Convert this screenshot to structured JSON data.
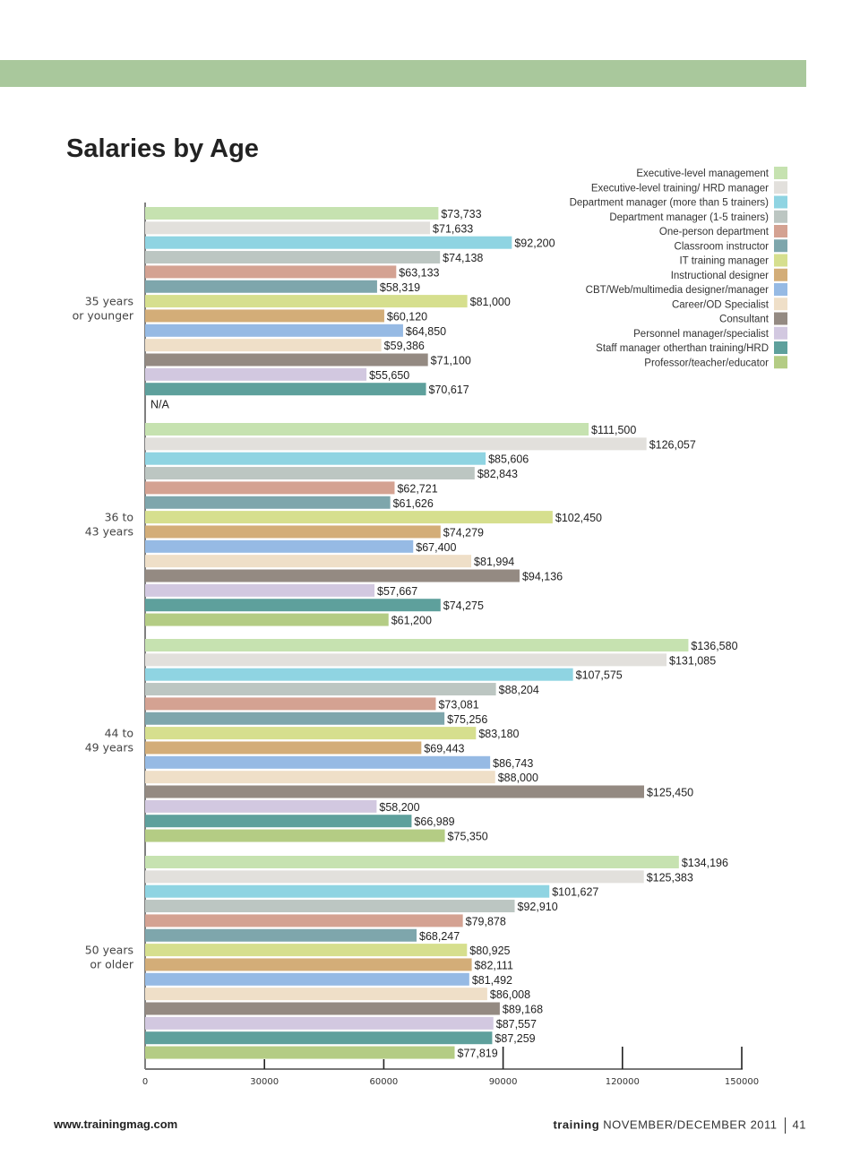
{
  "title": "Salaries by Age",
  "footer": {
    "website": "www.trainingmag.com",
    "magazine": "training",
    "issue": "NOVEMBER/DECEMBER 2011",
    "page": "41"
  },
  "chart_data": {
    "type": "bar",
    "orientation": "horizontal",
    "title": "Salaries by Age",
    "xlim": [
      0,
      150000
    ],
    "xticks": [
      "0",
      "30000",
      "60000",
      "90000",
      "120000",
      "150000"
    ],
    "legend_position": "top-right",
    "categories": [
      "35 years or younger",
      "36 to 43 years",
      "44 to 49 years",
      "50 years or older"
    ],
    "series": [
      {
        "name": "Executive-level management",
        "color": "#c6e2b0",
        "values": [
          73733,
          111500,
          136580,
          134196
        ],
        "labels": [
          "$73,733",
          "$111,500",
          "$136,580",
          "$134,196"
        ]
      },
      {
        "name": "Executive-level training/ HRD manager",
        "color": "#e2e0dc",
        "values": [
          71633,
          126057,
          131085,
          125383
        ],
        "labels": [
          "$71,633",
          "$126,057",
          "$131,085",
          "$125,383"
        ]
      },
      {
        "name": "Department manager (more than 5 trainers)",
        "color": "#8fd4e2",
        "values": [
          92200,
          85606,
          107575,
          101627
        ],
        "labels": [
          "$92,200",
          "$85,606",
          "$107,575",
          "$101,627"
        ]
      },
      {
        "name": "Department manager (1-5 trainers)",
        "color": "#bcc6c2",
        "values": [
          74138,
          82843,
          88204,
          92910
        ],
        "labels": [
          "$74,138",
          "$82,843",
          "$88,204",
          "$92,910"
        ]
      },
      {
        "name": "One-person department",
        "color": "#d4a292",
        "values": [
          63133,
          62721,
          73081,
          79878
        ],
        "labels": [
          "$63,133",
          "$62,721",
          "$73,081",
          "$79,878"
        ]
      },
      {
        "name": "Classroom instructor",
        "color": "#7ea6ac",
        "values": [
          58319,
          61626,
          75256,
          68247
        ],
        "labels": [
          "$58,319",
          "$61,626",
          "$75,256",
          "$68,247"
        ]
      },
      {
        "name": "IT training manager",
        "color": "#d6df8e",
        "values": [
          81000,
          102450,
          83180,
          80925
        ],
        "labels": [
          "$81,000",
          "$102,450",
          "$83,180",
          "$80,925"
        ]
      },
      {
        "name": "Instructional designer",
        "color": "#d3ad78",
        "values": [
          60120,
          74279,
          69443,
          82111
        ],
        "labels": [
          "$60,120",
          "$74,279",
          "$69,443",
          "$82,111"
        ]
      },
      {
        "name": "CBT/Web/multimedia designer/manager",
        "color": "#96bae4",
        "values": [
          64850,
          67400,
          86743,
          81492
        ],
        "labels": [
          "$64,850",
          "$67,400",
          "$86,743",
          "$81,492"
        ]
      },
      {
        "name": "Career/OD Specialist",
        "color": "#efdfc8",
        "values": [
          59386,
          81994,
          88000,
          86008
        ],
        "labels": [
          "$59,386",
          "$81,994",
          "$88,000",
          "$86,008"
        ]
      },
      {
        "name": "Consultant",
        "color": "#948a82",
        "values": [
          71100,
          94136,
          125450,
          89168
        ],
        "labels": [
          "$71,100",
          "$94,136",
          "$125,450",
          "$89,168"
        ]
      },
      {
        "name": "Personnel manager/specialist",
        "color": "#d2c8e0",
        "values": [
          55650,
          57667,
          58200,
          87557
        ],
        "labels": [
          "$55,650",
          "$57,667",
          "$58,200",
          "$87,557"
        ]
      },
      {
        "name": "Staff manager otherthan training/HRD",
        "color": "#5ea09c",
        "values": [
          70617,
          74275,
          66989,
          87259
        ],
        "labels": [
          "$70,617",
          "$74,275",
          "$66,989",
          "$87,259"
        ]
      },
      {
        "name": "Professor/teacher/educator",
        "color": "#b4cc84",
        "values": [
          null,
          61200,
          75350,
          77819
        ],
        "labels": [
          "N/A",
          "$61,200",
          "$75,350",
          "$77,819"
        ]
      }
    ]
  }
}
